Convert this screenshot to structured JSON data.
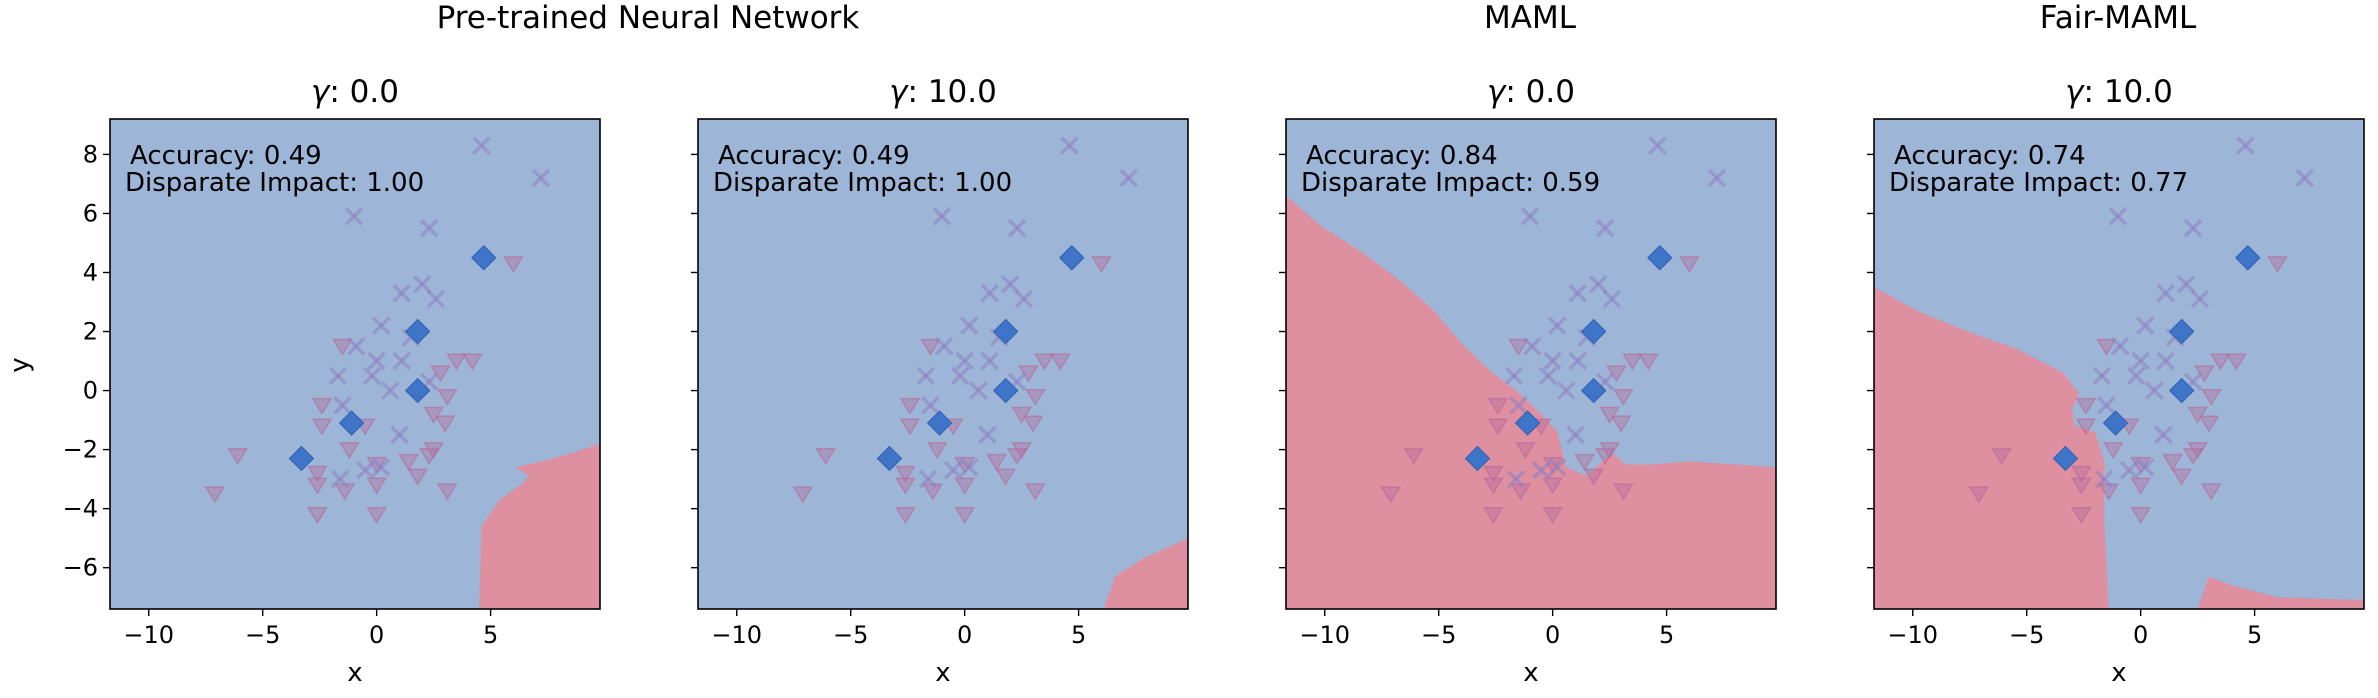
{
  "figure": {
    "group_titles": [
      "Pre-trained Neural Network",
      "MAML",
      "Fair-MAML"
    ]
  },
  "colors": {
    "background_region": "#9db5d6",
    "positive_region": "#de8fa0",
    "diamond": "#3f75c9",
    "x_marker": "#8e7fc2",
    "triangle": "#b56a9a"
  },
  "chart_data": [
    {
      "type": "scatter",
      "title": "γ: 0.0",
      "title_prefix": "γ",
      "title_value": ": 0.0",
      "group": "Pre-trained Neural Network",
      "xlabel": "x",
      "ylabel": "y",
      "xlim": [
        -11.7,
        9.8
      ],
      "ylim": [
        -7.4,
        9.2
      ],
      "xticks": [
        -10,
        -5,
        0,
        5
      ],
      "yticks": [
        -6,
        -4,
        -2,
        0,
        2,
        4,
        6,
        8
      ],
      "annotations": [
        "Accuracy: 0.49",
        "Disparate Impact: 1.00"
      ],
      "positive_region": [
        [
          9.8,
          -7.4
        ],
        [
          4.5,
          -7.4
        ],
        [
          4.6,
          -4.6
        ],
        [
          5.4,
          -3.7
        ],
        [
          6.3,
          -3.2
        ],
        [
          6.7,
          -2.9
        ],
        [
          6.1,
          -2.6
        ],
        [
          7.8,
          -2.3
        ],
        [
          9.8,
          -1.8
        ]
      ]
    },
    {
      "type": "scatter",
      "title": "γ: 10.0",
      "title_prefix": "γ",
      "title_value": ": 10.0",
      "group": "Pre-trained Neural Network",
      "xlabel": "x",
      "ylabel": "",
      "xlim": [
        -11.7,
        9.8
      ],
      "ylim": [
        -7.4,
        9.2
      ],
      "xticks": [
        -10,
        -5,
        0,
        5
      ],
      "yticks": [
        -6,
        -4,
        -2,
        0,
        2,
        4,
        6,
        8
      ],
      "annotations": [
        "Accuracy: 0.49",
        "Disparate Impact: 1.00"
      ],
      "positive_region": [
        [
          9.8,
          -7.4
        ],
        [
          6.1,
          -7.4
        ],
        [
          6.6,
          -6.3
        ],
        [
          7.8,
          -5.7
        ],
        [
          9.8,
          -5.0
        ]
      ]
    },
    {
      "type": "scatter",
      "title": "γ: 0.0",
      "title_prefix": "γ",
      "title_value": ": 0.0",
      "group": "MAML",
      "xlabel": "x",
      "ylabel": "",
      "xlim": [
        -11.7,
        9.8
      ],
      "ylim": [
        -7.4,
        9.2
      ],
      "xticks": [
        -10,
        -5,
        0,
        5
      ],
      "yticks": [
        -6,
        -4,
        -2,
        0,
        2,
        4,
        6,
        8
      ],
      "annotations": [
        "Accuracy: 0.84",
        "Disparate Impact: 0.59"
      ],
      "positive_region": [
        [
          -11.7,
          6.6
        ],
        [
          -10.2,
          5.6
        ],
        [
          -8.2,
          4.6
        ],
        [
          -6.5,
          3.6
        ],
        [
          -5.2,
          2.7
        ],
        [
          -4.0,
          1.6
        ],
        [
          -2.8,
          0.7
        ],
        [
          -1.6,
          0.0
        ],
        [
          -0.5,
          -0.8
        ],
        [
          0.2,
          -1.4
        ],
        [
          0.6,
          -2.6
        ],
        [
          1.5,
          -2.9
        ],
        [
          2.6,
          -2.1
        ],
        [
          3.2,
          -2.5
        ],
        [
          4.4,
          -2.5
        ],
        [
          6.0,
          -2.4
        ],
        [
          9.8,
          -2.6
        ],
        [
          9.8,
          -7.4
        ],
        [
          -11.7,
          -7.4
        ]
      ]
    },
    {
      "type": "scatter",
      "title": "γ: 10.0",
      "title_prefix": "γ",
      "title_value": ": 10.0",
      "group": "Fair-MAML",
      "xlabel": "x",
      "ylabel": "",
      "xlim": [
        -11.7,
        9.8
      ],
      "ylim": [
        -7.4,
        9.2
      ],
      "xticks": [
        -10,
        -5,
        0,
        5
      ],
      "yticks": [
        -6,
        -4,
        -2,
        0,
        2,
        4,
        6,
        8
      ],
      "annotations": [
        "Accuracy: 0.74",
        "Disparate Impact: 0.77"
      ],
      "positive_region": [
        [
          -11.7,
          3.5
        ],
        [
          -9.8,
          2.7
        ],
        [
          -7.6,
          2.0
        ],
        [
          -5.4,
          1.4
        ],
        [
          -3.4,
          0.6
        ],
        [
          -2.7,
          -0.1
        ],
        [
          -3.0,
          -0.6
        ],
        [
          -2.9,
          -1.2
        ],
        [
          -2.0,
          -1.4
        ],
        [
          -1.6,
          -2.4
        ],
        [
          -1.6,
          -4.4
        ],
        [
          -1.4,
          -7.4
        ],
        [
          -11.7,
          -7.4
        ]
      ],
      "positive_region_2": [
        [
          2.5,
          -7.4
        ],
        [
          3.0,
          -6.3
        ],
        [
          4.0,
          -6.6
        ],
        [
          6.0,
          -7.0
        ],
        [
          9.8,
          -7.1
        ],
        [
          9.8,
          -7.4
        ]
      ]
    }
  ],
  "points": {
    "diamonds": [
      [
        -3.3,
        -2.3
      ],
      [
        -1.1,
        -1.1
      ],
      [
        1.8,
        0.0
      ],
      [
        1.8,
        2.0
      ],
      [
        4.7,
        4.5
      ]
    ],
    "x_markers": [
      [
        4.6,
        8.3
      ],
      [
        7.2,
        7.2
      ],
      [
        -1.0,
        5.9
      ],
      [
        2.3,
        5.5
      ],
      [
        1.1,
        3.3
      ],
      [
        2.0,
        3.6
      ],
      [
        2.6,
        3.1
      ],
      [
        0.2,
        2.2
      ],
      [
        -0.9,
        1.5
      ],
      [
        1.5,
        1.8
      ],
      [
        0.0,
        1.0
      ],
      [
        1.1,
        1.0
      ],
      [
        -0.2,
        0.5
      ],
      [
        -1.7,
        0.5
      ],
      [
        0.6,
        0.0
      ],
      [
        2.3,
        0.3
      ],
      [
        -1.5,
        -0.5
      ],
      [
        1.0,
        -1.5
      ],
      [
        -0.5,
        -2.7
      ],
      [
        0.2,
        -2.6
      ],
      [
        -1.6,
        -3.0
      ]
    ]
  }
}
